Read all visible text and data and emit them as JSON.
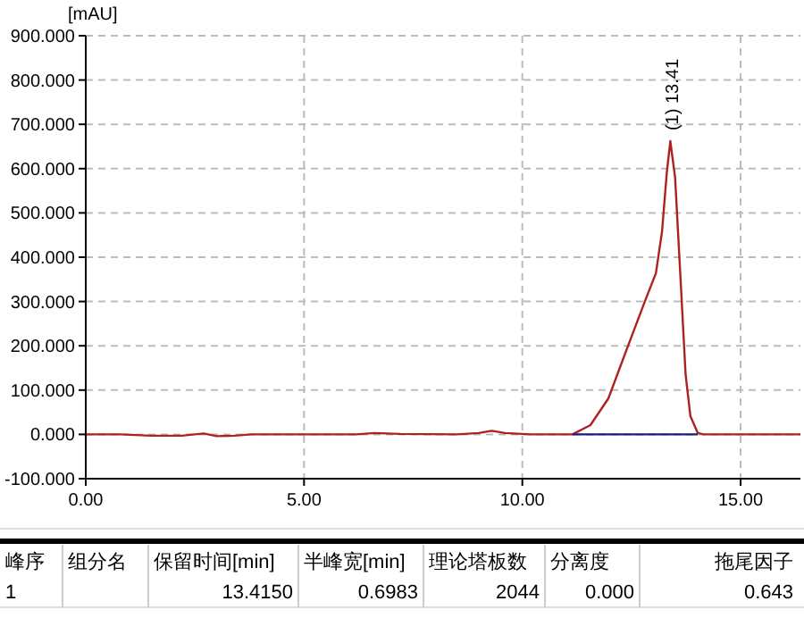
{
  "chart_data": {
    "type": "line",
    "ylabel": "[mAU]",
    "x": [
      0,
      0.8,
      1.5,
      2.2,
      2.7,
      3.0,
      3.4,
      3.8,
      5,
      6.2,
      6.6,
      7.2,
      8.5,
      9.0,
      9.3,
      9.6,
      10.2,
      11.15,
      11.56,
      11.97,
      12.38,
      12.79,
      13.06,
      13.2,
      13.31,
      13.39,
      13.5,
      13.61,
      13.74,
      13.85,
      14.02,
      14.15,
      15,
      16.37
    ],
    "series": [
      {
        "color": "#b02020",
        "values": [
          0,
          0,
          -3,
          -3,
          2,
          -4,
          -3,
          0,
          0,
          0,
          3,
          1,
          0,
          3,
          8,
          3,
          0,
          0,
          21,
          81,
          189,
          296,
          364,
          458,
          592,
          662,
          579,
          377,
          135,
          41,
          3,
          0,
          0,
          0
        ]
      },
      {
        "color": "#1a1a80",
        "x": [
          11.15,
          14.02
        ],
        "values": [
          0,
          0
        ]
      }
    ],
    "xlim": [
      0,
      16.37
    ],
    "ylim": [
      -100,
      900
    ],
    "xticks": [
      {
        "value": 0,
        "label": "0.00"
      },
      {
        "value": 5,
        "label": "5.00"
      },
      {
        "value": 10,
        "label": "10.00"
      },
      {
        "value": 15,
        "label": "15.00"
      }
    ],
    "yticks": [
      {
        "value": -100,
        "label": "-100.000"
      },
      {
        "value": 0,
        "label": "0.000"
      },
      {
        "value": 100,
        "label": "100.000"
      },
      {
        "value": 200,
        "label": "200.000"
      },
      {
        "value": 300,
        "label": "300.000"
      },
      {
        "value": 400,
        "label": "400.000"
      },
      {
        "value": 500,
        "label": "500.000"
      },
      {
        "value": 600,
        "label": "600.000"
      },
      {
        "value": 700,
        "label": "700.000"
      },
      {
        "value": 800,
        "label": "800.000"
      },
      {
        "value": 900,
        "label": "900.000"
      }
    ],
    "grid": true,
    "marker": "none",
    "line_style": "solid",
    "annotations": [
      {
        "text": "(1) 13.41",
        "x": 13.41,
        "y": 662
      },
      "峰序",
      "组分名",
      "保留时间[min]",
      "半峰宽[min]",
      "理论塔板数",
      "分离度",
      "拖尾因子",
      "1",
      "13.4150",
      "0.6983",
      "2044",
      "0.000",
      "0.643"
    ]
  }
}
